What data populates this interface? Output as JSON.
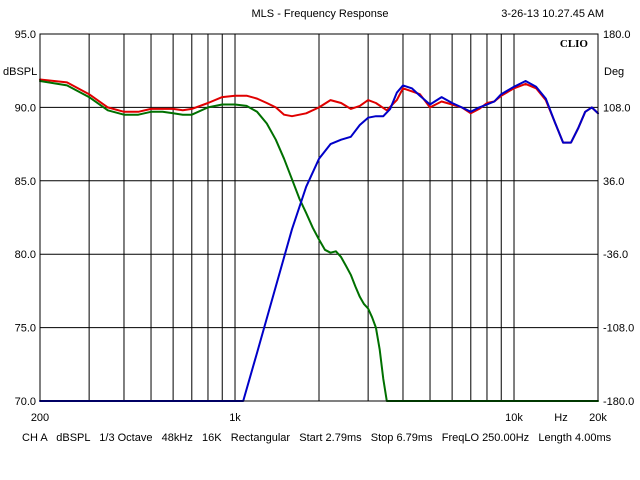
{
  "header": {
    "title": "MLS - Frequency Response",
    "timestamp": "3-26-13 10.27.45 AM"
  },
  "chart_data": {
    "type": "line",
    "title": "MLS - Frequency Response",
    "brand": "CLIO",
    "x_scale": "log",
    "xlim": [
      200,
      20000
    ],
    "ylim": [
      70,
      95
    ],
    "ylim_right": [
      -180,
      180
    ],
    "ylabel": "dBSPL",
    "ylabel_right": "Deg",
    "xlabel": "Hz",
    "grid": true,
    "x_tick_labels": [
      {
        "value": 200,
        "label": "200"
      },
      {
        "value": 1000,
        "label": "1k"
      },
      {
        "value": 10000,
        "label": "10k"
      },
      {
        "value": 20000,
        "label": "20k"
      }
    ],
    "y_tick_labels": [
      "95.0",
      "90.0",
      "85.0",
      "80.0",
      "75.0",
      "70.0"
    ],
    "y_right_tick_labels": [
      "180.0",
      "108.0",
      "36.0",
      "-36.0",
      "-108.0",
      "-180.0"
    ],
    "series": [
      {
        "color": "#e00000",
        "axis": "left",
        "points": [
          [
            200,
            91.9
          ],
          [
            250,
            91.7
          ],
          [
            300,
            90.9
          ],
          [
            350,
            90.0
          ],
          [
            400,
            89.7
          ],
          [
            450,
            89.7
          ],
          [
            500,
            89.9
          ],
          [
            550,
            89.9
          ],
          [
            600,
            89.9
          ],
          [
            650,
            89.8
          ],
          [
            700,
            89.9
          ],
          [
            800,
            90.3
          ],
          [
            900,
            90.7
          ],
          [
            1000,
            90.8
          ],
          [
            1100,
            90.8
          ],
          [
            1200,
            90.6
          ],
          [
            1300,
            90.3
          ],
          [
            1400,
            90.0
          ],
          [
            1500,
            89.5
          ],
          [
            1600,
            89.4
          ],
          [
            1800,
            89.6
          ],
          [
            2000,
            90.0
          ],
          [
            2200,
            90.5
          ],
          [
            2400,
            90.3
          ],
          [
            2600,
            89.9
          ],
          [
            2800,
            90.1
          ],
          [
            3000,
            90.5
          ],
          [
            3200,
            90.3
          ],
          [
            3500,
            89.8
          ],
          [
            3800,
            90.5
          ],
          [
            4000,
            91.3
          ],
          [
            4300,
            91.1
          ],
          [
            4600,
            90.9
          ],
          [
            5000,
            90.0
          ],
          [
            5500,
            90.4
          ],
          [
            6000,
            90.2
          ],
          [
            6500,
            90.0
          ],
          [
            7000,
            89.6
          ],
          [
            7500,
            89.9
          ],
          [
            8000,
            90.3
          ],
          [
            8500,
            90.4
          ],
          [
            9000,
            90.8
          ],
          [
            10000,
            91.3
          ],
          [
            11000,
            91.6
          ],
          [
            12000,
            91.3
          ],
          [
            13000,
            90.5
          ],
          [
            14000,
            89.0
          ],
          [
            15000,
            87.6
          ],
          [
            16000,
            87.6
          ],
          [
            17000,
            88.6
          ],
          [
            18000,
            89.7
          ],
          [
            19000,
            90.0
          ],
          [
            20000,
            89.6
          ]
        ]
      },
      {
        "color": "#007000",
        "axis": "left",
        "points": [
          [
            200,
            91.8
          ],
          [
            250,
            91.5
          ],
          [
            300,
            90.7
          ],
          [
            350,
            89.8
          ],
          [
            400,
            89.5
          ],
          [
            450,
            89.5
          ],
          [
            500,
            89.7
          ],
          [
            550,
            89.7
          ],
          [
            600,
            89.6
          ],
          [
            650,
            89.5
          ],
          [
            700,
            89.5
          ],
          [
            800,
            90.0
          ],
          [
            900,
            90.2
          ],
          [
            1000,
            90.2
          ],
          [
            1100,
            90.1
          ],
          [
            1200,
            89.7
          ],
          [
            1300,
            88.9
          ],
          [
            1400,
            87.8
          ],
          [
            1500,
            86.5
          ],
          [
            1600,
            85.1
          ],
          [
            1700,
            83.8
          ],
          [
            1800,
            82.8
          ],
          [
            1900,
            81.8
          ],
          [
            2000,
            81.0
          ],
          [
            2100,
            80.3
          ],
          [
            2200,
            80.1
          ],
          [
            2300,
            80.2
          ],
          [
            2400,
            79.8
          ],
          [
            2500,
            79.2
          ],
          [
            2600,
            78.6
          ],
          [
            2700,
            77.8
          ],
          [
            2800,
            77.1
          ],
          [
            2900,
            76.6
          ],
          [
            3000,
            76.3
          ],
          [
            3100,
            75.7
          ],
          [
            3200,
            75.0
          ],
          [
            3300,
            73.5
          ],
          [
            3400,
            71.5
          ],
          [
            3500,
            70.0
          ],
          [
            20000,
            70.0
          ]
        ]
      },
      {
        "color": "#0000c8",
        "axis": "left",
        "points": [
          [
            200,
            70.0
          ],
          [
            1070,
            70.0
          ],
          [
            1200,
            73.3
          ],
          [
            1400,
            77.8
          ],
          [
            1600,
            81.7
          ],
          [
            1800,
            84.6
          ],
          [
            2000,
            86.5
          ],
          [
            2200,
            87.5
          ],
          [
            2400,
            87.8
          ],
          [
            2600,
            88.0
          ],
          [
            2800,
            88.8
          ],
          [
            3000,
            89.3
          ],
          [
            3200,
            89.4
          ],
          [
            3400,
            89.4
          ],
          [
            3600,
            89.9
          ],
          [
            3800,
            91.0
          ],
          [
            4000,
            91.5
          ],
          [
            4300,
            91.3
          ],
          [
            4600,
            90.8
          ],
          [
            5000,
            90.2
          ],
          [
            5500,
            90.7
          ],
          [
            6000,
            90.3
          ],
          [
            6500,
            90.0
          ],
          [
            7000,
            89.7
          ],
          [
            7500,
            90.0
          ],
          [
            8000,
            90.2
          ],
          [
            8500,
            90.4
          ],
          [
            9000,
            90.9
          ],
          [
            10000,
            91.4
          ],
          [
            11000,
            91.8
          ],
          [
            12000,
            91.4
          ],
          [
            13000,
            90.6
          ],
          [
            14000,
            89.0
          ],
          [
            15000,
            87.6
          ],
          [
            16000,
            87.6
          ],
          [
            17000,
            88.6
          ],
          [
            18000,
            89.7
          ],
          [
            19000,
            90.0
          ],
          [
            20000,
            89.6
          ]
        ]
      }
    ]
  },
  "footer": {
    "channel": "CH A",
    "units": "dBSPL",
    "smoothing": "1/3 Octave",
    "sample_rate": "48kHz",
    "mls_size": "16K",
    "window": "Rectangular",
    "start": "Start 2.79ms",
    "stop": "Stop 6.79ms",
    "freq_lo": "FreqLO 250.00Hz",
    "length": "Length 4.00ms"
  }
}
